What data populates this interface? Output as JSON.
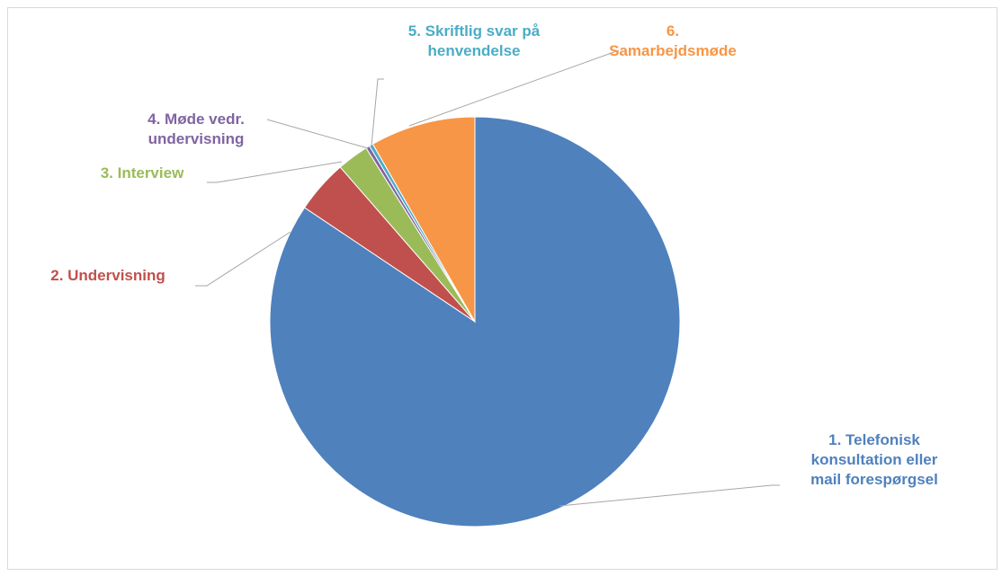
{
  "chart_data": {
    "type": "pie",
    "categories": [
      "1. Telefonisk\nkonsultation eller\nmail forespørgsel",
      "2. Undervisning",
      "3. Interview",
      "4.  Møde vedr.\nundervisning",
      "5. Skriftlig svar på\nhenvendelse",
      "6.\nSamarbejdsmøde"
    ],
    "values": [
      84.4,
      4.2,
      2.5,
      0.3,
      0.3,
      8.3
    ],
    "colors": [
      "#4f81bd",
      "#c0504d",
      "#9bbb59",
      "#8064a2",
      "#4bacc6",
      "#f79646"
    ],
    "start_angle": 90,
    "direction": "clockwise"
  }
}
